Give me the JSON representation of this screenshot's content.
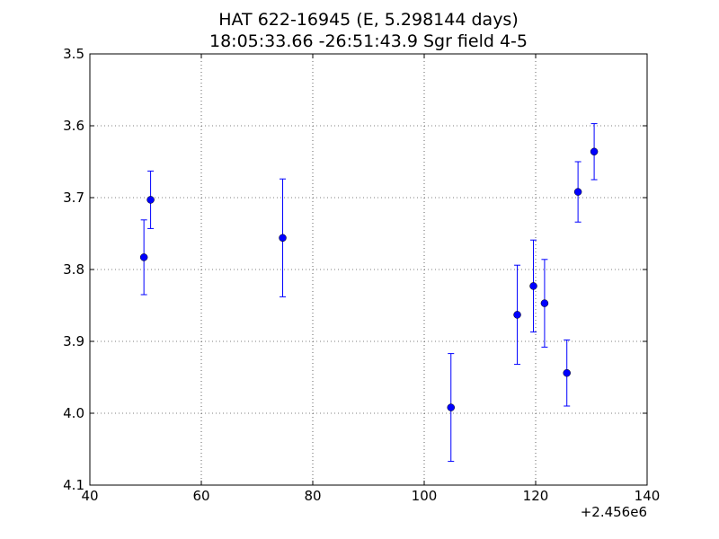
{
  "chart_data": {
    "type": "scatter",
    "title": "HAT 622-16945 (E, 5.298144 days)",
    "subtitle": "18:05:33.66 -26:51:43.9 Sgr field 4-5",
    "xlabel": "",
    "ylabel": "",
    "x_offset_label": "+2.456e6",
    "xlim": [
      40,
      140
    ],
    "ylim": [
      3.5,
      4.1
    ],
    "y_inverted": true,
    "x_ticks": [
      40,
      60,
      80,
      100,
      120,
      140
    ],
    "y_ticks": [
      3.5,
      3.6,
      3.7,
      3.8,
      3.9,
      4.0,
      4.1
    ],
    "x_tick_labels": [
      "40",
      "60",
      "80",
      "100",
      "120",
      "140"
    ],
    "y_tick_labels": [
      "3.5",
      "3.6",
      "3.7",
      "3.8",
      "3.9",
      "4.0",
      "4.1"
    ],
    "grid": true,
    "marker_color": "#0000ff",
    "points": [
      {
        "x": 49.7,
        "y": 3.783,
        "err": 0.052
      },
      {
        "x": 50.9,
        "y": 3.703,
        "err": 0.04
      },
      {
        "x": 74.6,
        "y": 3.756,
        "err": 0.082
      },
      {
        "x": 104.8,
        "y": 3.992,
        "err": 0.075
      },
      {
        "x": 116.7,
        "y": 3.863,
        "err": 0.069
      },
      {
        "x": 119.6,
        "y": 3.823,
        "err": 0.064
      },
      {
        "x": 121.6,
        "y": 3.847,
        "err": 0.061
      },
      {
        "x": 125.6,
        "y": 3.944,
        "err": 0.046
      },
      {
        "x": 127.6,
        "y": 3.692,
        "err": 0.042
      },
      {
        "x": 130.5,
        "y": 3.636,
        "err": 0.039
      }
    ]
  }
}
